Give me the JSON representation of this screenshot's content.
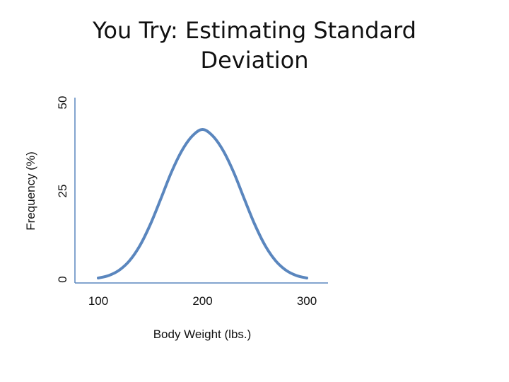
{
  "slide": {
    "title_line1": "You Try:  Estimating Standard",
    "title_line2": "Deviation"
  },
  "chart_data": {
    "type": "line",
    "title": "",
    "xlabel": "Body Weight (lbs.)",
    "ylabel": "Frequency (%)",
    "x_ticks": [
      100,
      200,
      300
    ],
    "y_ticks": [
      0,
      25,
      50
    ],
    "xlim": [
      100,
      300
    ],
    "ylim": [
      0,
      50
    ],
    "grid": false,
    "series": [
      {
        "color": "#5a86be",
        "x": [
          100,
          110,
          120,
          130,
          140,
          150,
          160,
          170,
          180,
          190,
          200,
          210,
          220,
          230,
          240,
          250,
          260,
          270,
          280,
          290,
          300
        ],
        "y": [
          0.4,
          1.1,
          2.6,
          5.3,
          9.6,
          15.6,
          22.8,
          30.2,
          36.3,
          40.5,
          42.4,
          40.5,
          36.3,
          30.2,
          22.8,
          15.6,
          9.6,
          5.3,
          2.6,
          1.1,
          0.4
        ]
      }
    ]
  }
}
